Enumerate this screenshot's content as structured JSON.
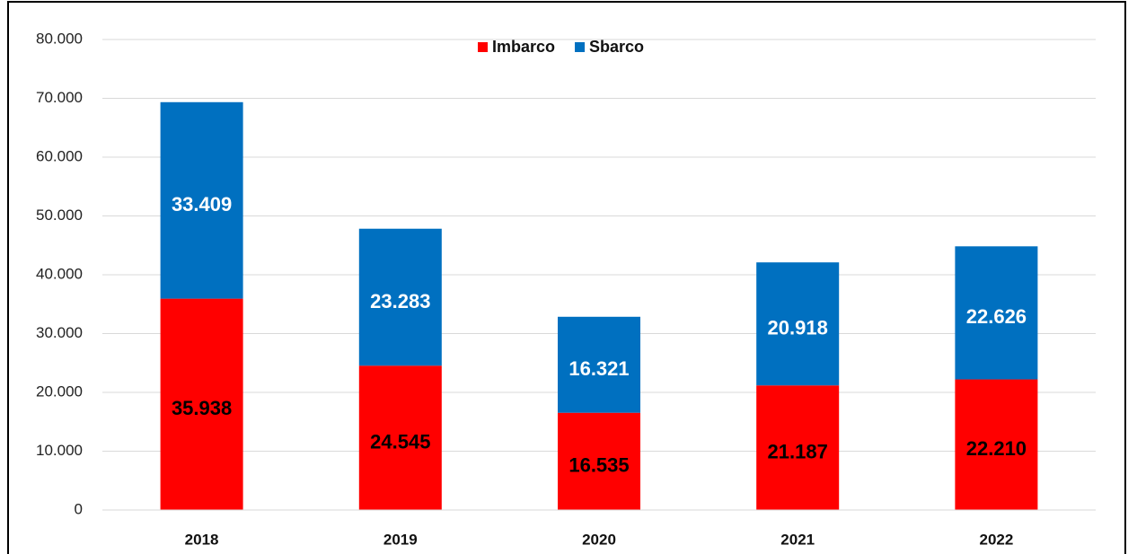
{
  "chart_data": {
    "type": "stacked_bar",
    "categories": [
      "2018",
      "2019",
      "2020",
      "2021",
      "2022"
    ],
    "series": [
      {
        "name": "Imbarco",
        "color": "#ff0000",
        "label_color": "#000000",
        "values": [
          35938,
          24545,
          16535,
          21187,
          22210
        ],
        "value_labels": [
          "35.938",
          "24.545",
          "16.535",
          "21.187",
          "22.210"
        ]
      },
      {
        "name": "Sbarco",
        "color": "#0070c0",
        "label_color": "#ffffff",
        "values": [
          33409,
          23283,
          16321,
          20918,
          22626
        ],
        "value_labels": [
          "33.409",
          "23.283",
          "16.321",
          "20.918",
          "22.626"
        ]
      }
    ],
    "ylim": [
      0,
      80000
    ],
    "yticks": [
      0,
      {
        "value": 10000,
        "label": "10.000"
      },
      {
        "value": 20000,
        "label": "20.000"
      },
      {
        "value": 30000,
        "label": "30.000"
      },
      {
        "value": 40000,
        "label": "40.000"
      },
      {
        "value": 50000,
        "label": "50.000"
      },
      {
        "value": 60000,
        "label": "60.000"
      },
      {
        "value": 70000,
        "label": "70.000"
      },
      {
        "value": 80000,
        "label": "80.000"
      }
    ],
    "grid": true,
    "legend": "top"
  }
}
